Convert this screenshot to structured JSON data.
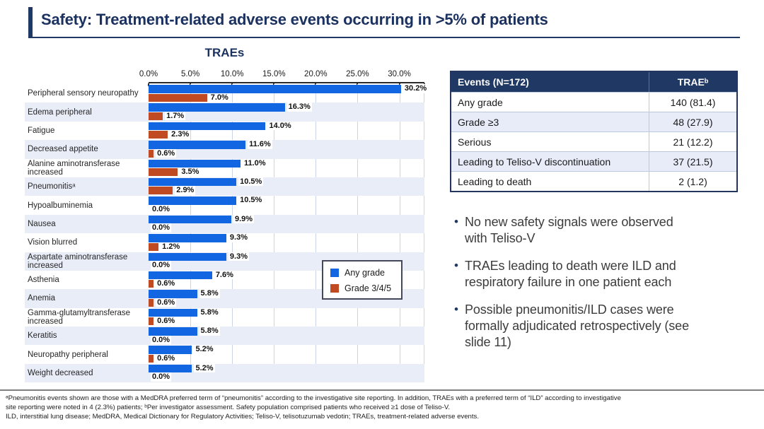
{
  "slide": {
    "title": "Safety: Treatment-related adverse events occurring in >5% of patients"
  },
  "chart_data": {
    "type": "bar",
    "orientation": "horizontal",
    "title": "TRAEs",
    "categories": [
      "Peripheral sensory neuropathy",
      "Edema peripheral",
      "Fatigue",
      "Decreased appetite",
      "Alanine aminotransferase increased",
      "Pneumonitisᵃ",
      "Hypoalbuminemia",
      "Nausea",
      "Vision blurred",
      "Aspartate aminotransferase increased",
      "Asthenia",
      "Anemia",
      "Gamma-glutamyltransferase increased",
      "Keratitis",
      "Neuropathy peripheral",
      "Weight decreased"
    ],
    "series": [
      {
        "name": "Any grade",
        "color": "#1266e2",
        "values": [
          30.2,
          16.3,
          14.0,
          11.6,
          11.0,
          10.5,
          10.5,
          9.9,
          9.3,
          9.3,
          7.6,
          5.8,
          5.8,
          5.8,
          5.2,
          5.2
        ]
      },
      {
        "name": "Grade 3/4/5",
        "color": "#c04a21",
        "values": [
          7.0,
          1.7,
          2.3,
          0.6,
          3.5,
          2.9,
          0.0,
          0.0,
          1.2,
          0.0,
          0.6,
          0.6,
          0.6,
          0.0,
          0.6,
          0.0
        ]
      }
    ],
    "x_ticks": [
      "0.0%",
      "5.0%",
      "10.0%",
      "15.0%",
      "20.0%",
      "25.0%",
      "30.0%"
    ],
    "x_tick_values": [
      0,
      5,
      10,
      15,
      20,
      25,
      30
    ],
    "xlim": [
      0,
      33
    ],
    "gridlines": true,
    "legend_position": "inside-right",
    "value_label_suffix": "%"
  },
  "table": {
    "headers": [
      "Events (N=172)",
      "TRAEᵇ"
    ],
    "rows": [
      [
        "Any grade",
        "140 (81.4)"
      ],
      [
        "Grade ≥3",
        "48 (27.9)"
      ],
      [
        "Serious",
        "21 (12.2)"
      ],
      [
        "Leading to Teliso-V discontinuation",
        "37 (21.5)"
      ],
      [
        "Leading to death",
        "2 (1.2)"
      ]
    ]
  },
  "bullets": [
    "No new safety signals were observed\nwith Teliso-V",
    "TRAEs leading to death were ILD and\nrespiratory failure in one patient each",
    "Possible pneumonitis/ILD cases were\nformally adjudicated retrospectively (see\nslide 11)"
  ],
  "footnotes": {
    "lines": [
      "ᵃPneumonitis events shown are those with a MedDRA preferred term of “pneumonitis” according to the investigative site reporting. In addition, TRAEs with a preferred term of “ILD” according to investigative",
      "site reporting were noted in 4 (2.3%) patients; ᵇPer investigator assessment. Safety population comprised patients who received ≥1 dose of Teliso-V.",
      "ILD, interstitial lung disease; MedDRA, Medical Dictionary for Regulatory Activities; Teliso-V, telisotuzumab vedotin; TRAEs, treatment-related adverse events."
    ]
  },
  "colors": {
    "accent_navy": "#1f3864",
    "any_grade_blue": "#1266e2",
    "grade345_orange": "#c04a21",
    "row_stripe": "#e9edf8",
    "table_stripe": "#e7ecf8",
    "gridline": "#ccd5e8"
  }
}
